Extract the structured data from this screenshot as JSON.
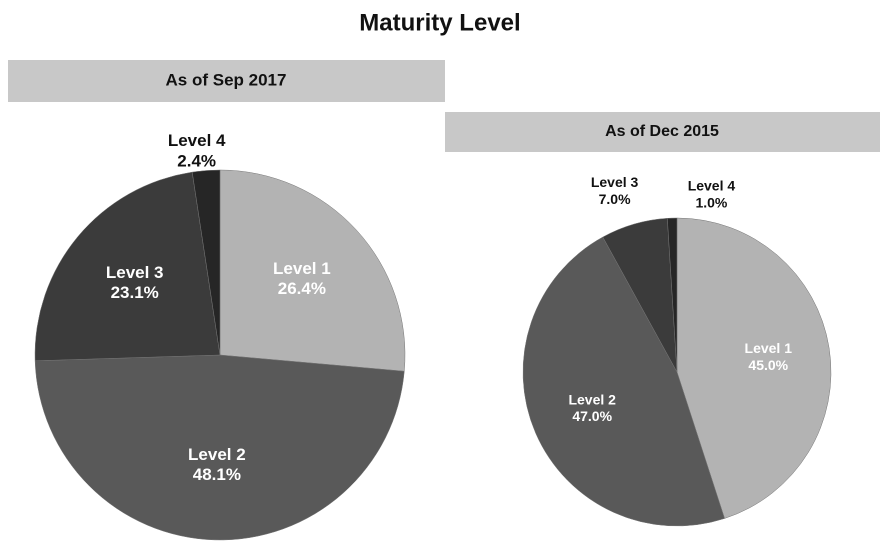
{
  "title": "Maturity Level",
  "chart_data": [
    {
      "type": "pie",
      "title": "As of Sep 2017",
      "categories": [
        "Level 1",
        "Level 2",
        "Level 3",
        "Level 4"
      ],
      "values": [
        26.4,
        48.1,
        23.1,
        2.4
      ],
      "value_labels": [
        "26.4%",
        "48.1%",
        "23.1%",
        "2.4%"
      ],
      "colors": [
        "#b3b3b3",
        "#595959",
        "#3b3b3b",
        "#262626"
      ]
    },
    {
      "type": "pie",
      "title": "As of Dec 2015",
      "categories": [
        "Level 1",
        "Level 2",
        "Level 3",
        "Level 4"
      ],
      "values": [
        45.0,
        47.0,
        7.0,
        1.0
      ],
      "value_labels": [
        "45.0%",
        "47.0%",
        "7.0%",
        "1.0%"
      ],
      "colors": [
        "#b3b3b3",
        "#595959",
        "#3b3b3b",
        "#262626"
      ]
    }
  ]
}
